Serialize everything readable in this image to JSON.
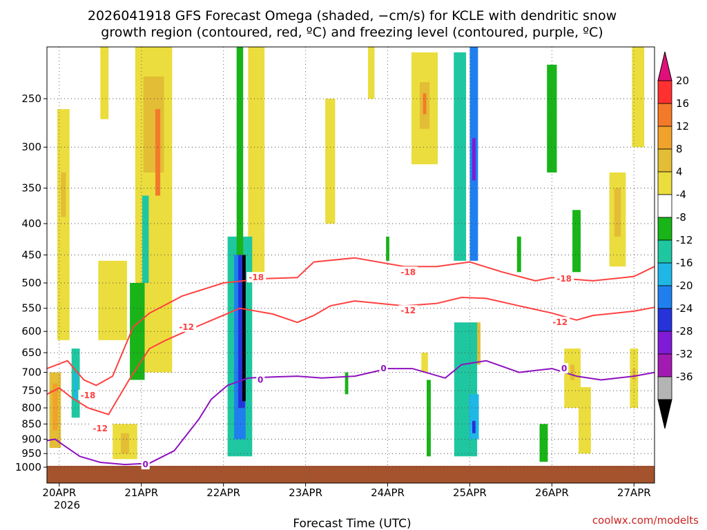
{
  "chart_data": {
    "type": "heatmap",
    "title_lines": [
      "2026041918 GFS Forecast Omega (shaded, −cm/s) for KCLE with dendritic snow",
      "growth region (contoured, red, ºC) and freezing level (contoured, purple, ºC)"
    ],
    "xlabel": "Forecast Time (UTC)",
    "credit": "coolwx.com/modelts",
    "x_ticks": [
      "20APR",
      "21APR",
      "22APR",
      "23APR",
      "24APR",
      "25APR",
      "26APR",
      "27APR"
    ],
    "x_year": "2026",
    "x_range_days": [
      19.85,
      27.25
    ],
    "y_range_hpa": [
      1000,
      200
    ],
    "y_ticks": [
      250,
      300,
      350,
      400,
      450,
      500,
      550,
      600,
      650,
      700,
      750,
      800,
      850,
      900,
      950,
      1000
    ],
    "colorbar": {
      "labels": [
        "20",
        "16",
        "12",
        "8",
        "4",
        "-4",
        "-8",
        "-12",
        "-16",
        "-20",
        "-24",
        "-28",
        "-32",
        "-36"
      ],
      "colors": [
        "#ff3030",
        "#f47a2a",
        "#f0a22a",
        "#e3bd35",
        "#ebdd3d",
        "#ffffff",
        "#18b418",
        "#1fc7a1",
        "#1fb7e6",
        "#1f7fef",
        "#2533d9",
        "#7f1ad6",
        "#a31ab3",
        "#b4b4b4",
        "#000000"
      ],
      "top_arrow_color": "#e0107a",
      "bottom_arrow_color": "#000000"
    },
    "omega_regions": [
      {
        "t": 20.05,
        "p1": 260,
        "p2": 620,
        "w": 0.15,
        "v": 6
      },
      {
        "t": 20.05,
        "p1": 330,
        "p2": 390,
        "w": 0.06,
        "v": 10
      },
      {
        "t": 20.65,
        "p1": 460,
        "p2": 620,
        "w": 0.35,
        "v": 5
      },
      {
        "t": 20.55,
        "p1": 200,
        "p2": 270,
        "w": 0.1,
        "v": 5
      },
      {
        "t": 21.15,
        "p1": 200,
        "p2": 700,
        "w": 0.45,
        "v": 6
      },
      {
        "t": 21.15,
        "p1": 230,
        "p2": 330,
        "w": 0.25,
        "v": 11
      },
      {
        "t": 21.2,
        "p1": 260,
        "p2": 360,
        "w": 0.06,
        "v": 17
      },
      {
        "t": 20.8,
        "p1": 850,
        "p2": 970,
        "w": 0.3,
        "v": 6
      },
      {
        "t": 20.8,
        "p1": 880,
        "p2": 950,
        "w": 0.1,
        "v": 10
      },
      {
        "t": 19.95,
        "p1": 700,
        "p2": 930,
        "w": 0.14,
        "v": 10
      },
      {
        "t": 19.95,
        "p1": 730,
        "p2": 870,
        "w": 0.06,
        "v": 15
      },
      {
        "t": 22.4,
        "p1": 200,
        "p2": 490,
        "w": 0.2,
        "v": 5
      },
      {
        "t": 23.3,
        "p1": 250,
        "p2": 400,
        "w": 0.12,
        "v": 5
      },
      {
        "t": 24.45,
        "p1": 210,
        "p2": 320,
        "w": 0.32,
        "v": 7
      },
      {
        "t": 24.45,
        "p1": 235,
        "p2": 280,
        "w": 0.12,
        "v": 11
      },
      {
        "t": 24.45,
        "p1": 245,
        "p2": 265,
        "w": 0.04,
        "v": 17
      },
      {
        "t": 23.8,
        "p1": 200,
        "p2": 250,
        "w": 0.08,
        "v": 5
      },
      {
        "t": 25.08,
        "p1": 580,
        "p2": 680,
        "w": 0.1,
        "v": 8
      },
      {
        "t": 24.45,
        "p1": 650,
        "p2": 700,
        "w": 0.08,
        "v": 5
      },
      {
        "t": 26.25,
        "p1": 640,
        "p2": 800,
        "w": 0.2,
        "v": 6
      },
      {
        "t": 26.25,
        "p1": 680,
        "p2": 720,
        "w": 0.05,
        "v": 10
      },
      {
        "t": 26.8,
        "p1": 330,
        "p2": 470,
        "w": 0.2,
        "v": 5
      },
      {
        "t": 26.8,
        "p1": 350,
        "p2": 420,
        "w": 0.08,
        "v": 10
      },
      {
        "t": 27.05,
        "p1": 200,
        "p2": 300,
        "w": 0.15,
        "v": 6
      },
      {
        "t": 27.0,
        "p1": 640,
        "p2": 800,
        "w": 0.1,
        "v": 7
      },
      {
        "t": 27.0,
        "p1": 690,
        "p2": 720,
        "w": 0.04,
        "v": 10
      },
      {
        "t": 26.4,
        "p1": 740,
        "p2": 950,
        "w": 0.15,
        "v": 5
      },
      {
        "t": 20.2,
        "p1": 640,
        "p2": 830,
        "w": 0.1,
        "v": -10
      },
      {
        "t": 20.2,
        "p1": 700,
        "p2": 780,
        "w": 0.04,
        "v": -14
      },
      {
        "t": 20.95,
        "p1": 500,
        "p2": 720,
        "w": 0.18,
        "v": -6
      },
      {
        "t": 21.05,
        "p1": 360,
        "p2": 500,
        "w": 0.08,
        "v": -10
      },
      {
        "t": 22.2,
        "p1": 420,
        "p2": 960,
        "w": 0.3,
        "v": -10
      },
      {
        "t": 22.2,
        "p1": 450,
        "p2": 900,
        "w": 0.14,
        "v": -16
      },
      {
        "t": 22.22,
        "p1": 450,
        "p2": 800,
        "w": 0.08,
        "v": -22
      },
      {
        "t": 22.25,
        "p1": 450,
        "p2": 780,
        "w": 0.04,
        "v": -36
      },
      {
        "t": 22.2,
        "p1": 200,
        "p2": 450,
        "w": 0.08,
        "v": -6
      },
      {
        "t": 24.88,
        "p1": 210,
        "p2": 460,
        "w": 0.15,
        "v": -9
      },
      {
        "t": 25.05,
        "p1": 200,
        "p2": 460,
        "w": 0.1,
        "v": -16
      },
      {
        "t": 25.05,
        "p1": 290,
        "p2": 340,
        "w": 0.04,
        "v": -24
      },
      {
        "t": 24.95,
        "p1": 580,
        "p2": 960,
        "w": 0.28,
        "v": -8
      },
      {
        "t": 25.05,
        "p1": 760,
        "p2": 900,
        "w": 0.12,
        "v": -14
      },
      {
        "t": 25.05,
        "p1": 840,
        "p2": 880,
        "w": 0.04,
        "v": -22
      },
      {
        "t": 26.0,
        "p1": 220,
        "p2": 330,
        "w": 0.12,
        "v": -7
      },
      {
        "t": 25.6,
        "p1": 420,
        "p2": 480,
        "w": 0.05,
        "v": -6
      },
      {
        "t": 25.9,
        "p1": 850,
        "p2": 980,
        "w": 0.1,
        "v": -7
      },
      {
        "t": 26.3,
        "p1": 380,
        "p2": 480,
        "w": 0.1,
        "v": -6
      },
      {
        "t": 24.0,
        "p1": 420,
        "p2": 460,
        "w": 0.04,
        "v": -6
      },
      {
        "t": 24.5,
        "p1": 720,
        "p2": 960,
        "w": 0.05,
        "v": -6
      },
      {
        "t": 23.5,
        "p1": 700,
        "p2": 760,
        "w": 0.04,
        "v": -6
      }
    ],
    "contours": [
      {
        "label": "-18",
        "color": "#ff4040",
        "label_at": [
          [
            20.35,
            763
          ],
          [
            22.4,
            490
          ],
          [
            24.25,
            480
          ],
          [
            26.15,
            492
          ]
        ],
        "points": [
          [
            19.85,
            690
          ],
          [
            20.1,
            670
          ],
          [
            20.3,
            720
          ],
          [
            20.45,
            735
          ],
          [
            20.65,
            710
          ],
          [
            20.9,
            590
          ],
          [
            21.1,
            560
          ],
          [
            21.5,
            525
          ],
          [
            22.0,
            500
          ],
          [
            22.5,
            492
          ],
          [
            22.9,
            490
          ],
          [
            23.1,
            462
          ],
          [
            23.6,
            455
          ],
          [
            24.2,
            470
          ],
          [
            24.6,
            470
          ],
          [
            25.0,
            462
          ],
          [
            25.4,
            480
          ],
          [
            25.8,
            496
          ],
          [
            26.0,
            490
          ],
          [
            26.5,
            496
          ],
          [
            27.0,
            488
          ],
          [
            27.25,
            470
          ]
        ]
      },
      {
        "label": "-12",
        "color": "#ff4040",
        "label_at": [
          [
            20.5,
            865
          ],
          [
            21.55,
            590
          ],
          [
            24.25,
            555
          ],
          [
            26.1,
            580
          ]
        ],
        "points": [
          [
            19.85,
            760
          ],
          [
            20.0,
            742
          ],
          [
            20.15,
            770
          ],
          [
            20.35,
            800
          ],
          [
            20.6,
            820
          ],
          [
            20.85,
            720
          ],
          [
            21.1,
            640
          ],
          [
            21.3,
            620
          ],
          [
            21.6,
            595
          ],
          [
            21.9,
            572
          ],
          [
            22.2,
            550
          ],
          [
            22.6,
            562
          ],
          [
            22.9,
            580
          ],
          [
            23.1,
            565
          ],
          [
            23.3,
            545
          ],
          [
            23.6,
            535
          ],
          [
            24.2,
            545
          ],
          [
            24.6,
            540
          ],
          [
            24.9,
            528
          ],
          [
            25.2,
            530
          ],
          [
            25.6,
            545
          ],
          [
            26.0,
            560
          ],
          [
            26.3,
            575
          ],
          [
            26.5,
            565
          ],
          [
            27.0,
            556
          ],
          [
            27.25,
            548
          ]
        ]
      },
      {
        "label": "0",
        "color": "#8e10c0",
        "label_at": [
          [
            21.05,
            990
          ],
          [
            22.45,
            720
          ],
          [
            23.95,
            690
          ],
          [
            26.15,
            690
          ]
        ],
        "points": [
          [
            19.85,
            905
          ],
          [
            19.95,
            900
          ],
          [
            20.05,
            920
          ],
          [
            20.25,
            960
          ],
          [
            20.5,
            982
          ],
          [
            20.8,
            990
          ],
          [
            21.1,
            985
          ],
          [
            21.4,
            940
          ],
          [
            21.7,
            835
          ],
          [
            21.85,
            775
          ],
          [
            22.05,
            735
          ],
          [
            22.3,
            715
          ],
          [
            22.6,
            712
          ],
          [
            22.9,
            710
          ],
          [
            23.2,
            715
          ],
          [
            23.6,
            710
          ],
          [
            24.0,
            690
          ],
          [
            24.3,
            690
          ],
          [
            24.7,
            715
          ],
          [
            24.9,
            680
          ],
          [
            25.2,
            670
          ],
          [
            25.6,
            700
          ],
          [
            26.0,
            690
          ],
          [
            26.3,
            710
          ],
          [
            26.6,
            720
          ],
          [
            27.0,
            710
          ],
          [
            27.25,
            700
          ]
        ]
      }
    ]
  }
}
